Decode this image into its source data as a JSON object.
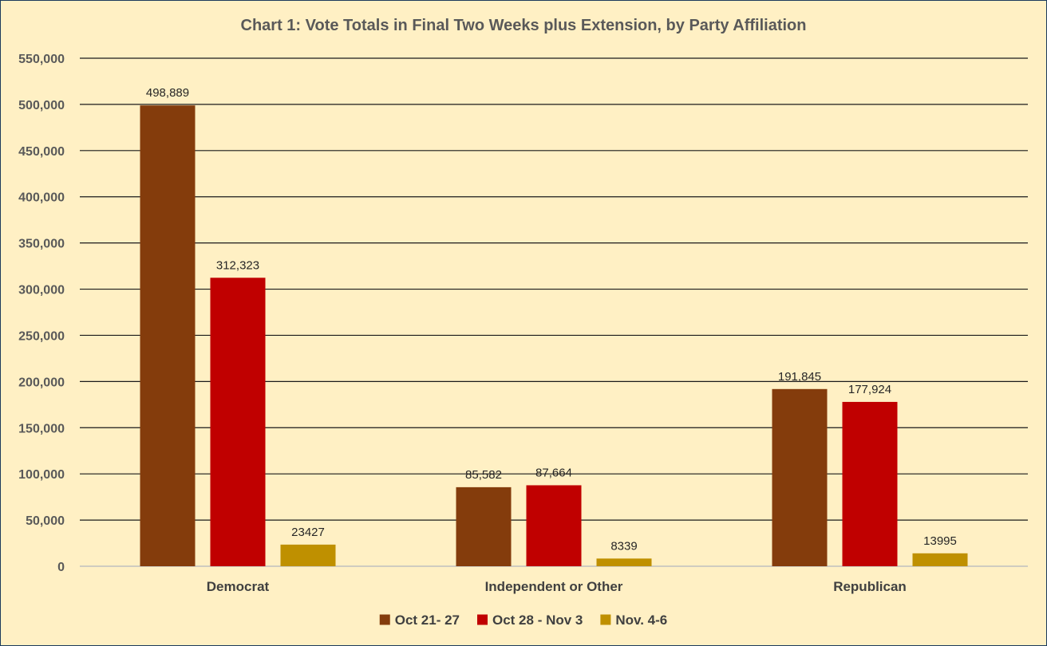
{
  "chart_data": {
    "type": "bar",
    "title": "Chart 1: Vote Totals in Final Two Weeks plus Extension, by Party Affiliation",
    "categories": [
      "Democrat",
      "Independent or Other",
      "Republican"
    ],
    "ylim": [
      0,
      550000
    ],
    "yticks": [
      0,
      50000,
      100000,
      150000,
      200000,
      250000,
      300000,
      350000,
      400000,
      450000,
      500000,
      550000
    ],
    "ytick_labels": [
      "0",
      "50,000",
      "100,000",
      "150,000",
      "200,000",
      "250,000",
      "300,000",
      "350,000",
      "400,000",
      "450,000",
      "500,000",
      "550,000"
    ],
    "grid": true,
    "legend_position": "bottom",
    "series": [
      {
        "name": "Oct 21- 27",
        "color": "#843c0c",
        "values": [
          498889,
          85582,
          191845
        ],
        "labels": [
          "498,889",
          "85,582",
          "191,845"
        ]
      },
      {
        "name": "Oct 28 - Nov 3",
        "color": "#c00000",
        "values": [
          312323,
          87664,
          177924
        ],
        "labels": [
          "312,323",
          "87,664",
          "177,924"
        ]
      },
      {
        "name": "Nov. 4-6",
        "color": "#bf9000",
        "values": [
          23427,
          8339,
          13995
        ],
        "labels": [
          "23427",
          "8339",
          "13995"
        ]
      }
    ]
  }
}
